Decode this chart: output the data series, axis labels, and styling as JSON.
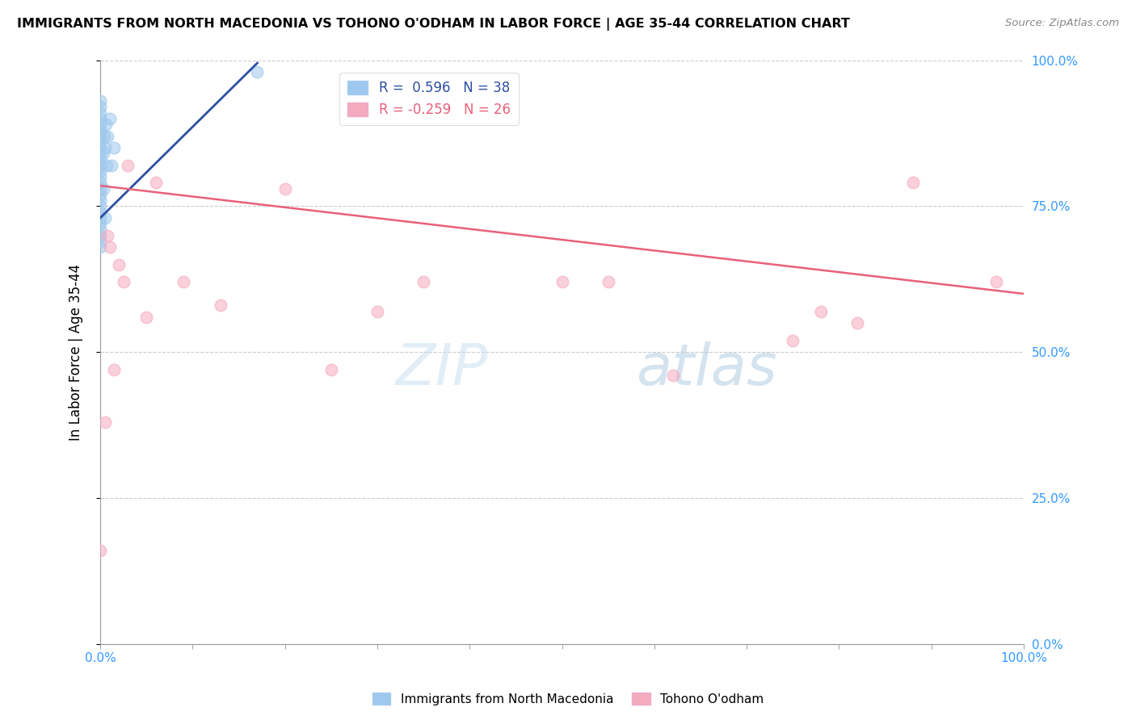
{
  "title": "IMMIGRANTS FROM NORTH MACEDONIA VS TOHONO O'ODHAM IN LABOR FORCE | AGE 35-44 CORRELATION CHART",
  "source": "Source: ZipAtlas.com",
  "ylabel": "In Labor Force | Age 35-44",
  "xlim": [
    0,
    1
  ],
  "ylim": [
    0,
    1
  ],
  "x_tick_positions": [
    0.0,
    0.1,
    0.2,
    0.3,
    0.4,
    0.5,
    0.6,
    0.7,
    0.8,
    0.9,
    1.0
  ],
  "x_tick_labels_show": [
    "0.0%",
    "",
    "",
    "",
    "",
    "",
    "",
    "",
    "",
    "",
    "100.0%"
  ],
  "y_tick_labels": [
    "0.0%",
    "25.0%",
    "50.0%",
    "75.0%",
    "100.0%"
  ],
  "y_tick_positions": [
    0.0,
    0.25,
    0.5,
    0.75,
    1.0
  ],
  "watermark_text": "ZIPatlas",
  "blue_color": "#9EC8EE",
  "pink_color": "#F5ABBE",
  "blue_line_color": "#2B4FA0",
  "pink_line_color": "#E8607A",
  "blue_scatter_x": [
    0.0,
    0.0,
    0.0,
    0.0,
    0.0,
    0.0,
    0.0,
    0.0,
    0.0,
    0.0,
    0.0,
    0.0,
    0.0,
    0.0,
    0.0,
    0.0,
    0.0,
    0.0,
    0.0,
    0.0,
    0.0,
    0.0,
    0.0,
    0.0,
    0.0,
    0.0,
    0.003,
    0.003,
    0.004,
    0.005,
    0.005,
    0.006,
    0.007,
    0.008,
    0.01,
    0.012,
    0.015,
    0.17
  ],
  "blue_scatter_y": [
    0.93,
    0.92,
    0.91,
    0.9,
    0.89,
    0.88,
    0.87,
    0.86,
    0.85,
    0.84,
    0.83,
    0.82,
    0.81,
    0.8,
    0.79,
    0.78,
    0.77,
    0.76,
    0.75,
    0.74,
    0.73,
    0.72,
    0.71,
    0.7,
    0.69,
    0.68,
    0.84,
    0.78,
    0.87,
    0.85,
    0.73,
    0.89,
    0.82,
    0.87,
    0.9,
    0.82,
    0.85,
    0.98
  ],
  "pink_scatter_x": [
    0.0,
    0.005,
    0.008,
    0.01,
    0.015,
    0.02,
    0.025,
    0.03,
    0.05,
    0.06,
    0.09,
    0.13,
    0.2,
    0.25,
    0.3,
    0.35,
    0.5,
    0.55,
    0.62,
    0.75,
    0.78,
    0.82,
    0.88,
    0.97
  ],
  "pink_scatter_y": [
    0.16,
    0.38,
    0.7,
    0.68,
    0.47,
    0.65,
    0.62,
    0.82,
    0.56,
    0.79,
    0.62,
    0.58,
    0.78,
    0.47,
    0.57,
    0.62,
    0.62,
    0.62,
    0.46,
    0.52,
    0.57,
    0.55,
    0.79,
    0.62
  ],
  "blue_trend_x": [
    0.0,
    0.17
  ],
  "blue_trend_y": [
    0.73,
    0.995
  ],
  "pink_trend_x": [
    0.0,
    1.0
  ],
  "pink_trend_y": [
    0.785,
    0.6
  ]
}
